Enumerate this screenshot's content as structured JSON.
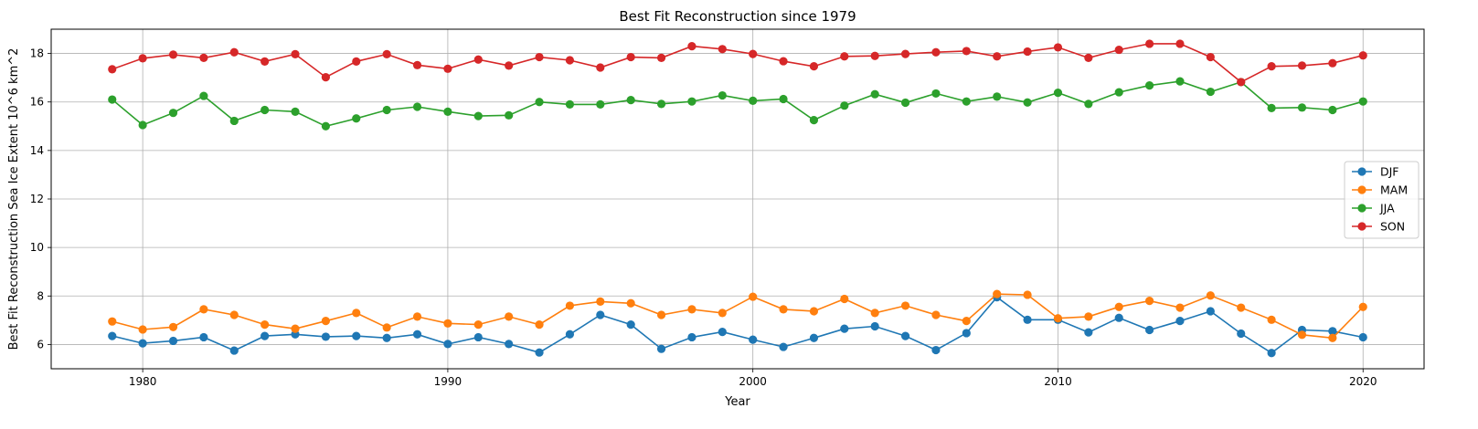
{
  "chart_data": {
    "type": "line",
    "title": "Best Fit Reconstruction since 1979",
    "xlabel": "Year",
    "ylabel": "Best Fit Reconstruction Sea Ice Extent 10^6 km^2",
    "xlim": [
      1977,
      2022
    ],
    "ylim": [
      5,
      19
    ],
    "xticks": [
      1980,
      1990,
      2000,
      2010,
      2020
    ],
    "yticks": [
      6,
      8,
      10,
      12,
      14,
      16,
      18
    ],
    "grid": true,
    "legend_position": "center-right",
    "x": [
      1979,
      1980,
      1981,
      1982,
      1983,
      1984,
      1985,
      1986,
      1987,
      1988,
      1989,
      1990,
      1991,
      1992,
      1993,
      1994,
      1995,
      1996,
      1997,
      1998,
      1999,
      2000,
      2001,
      2002,
      2003,
      2004,
      2005,
      2006,
      2007,
      2008,
      2009,
      2010,
      2011,
      2012,
      2013,
      2014,
      2015,
      2016,
      2017,
      2018,
      2019,
      2020
    ],
    "series": [
      {
        "name": "DJF",
        "color": "#1f77b4",
        "values": [
          6.35,
          6.05,
          6.15,
          6.3,
          5.75,
          6.35,
          6.42,
          6.32,
          6.35,
          6.27,
          6.42,
          6.02,
          6.3,
          6.02,
          5.67,
          6.42,
          7.22,
          6.82,
          5.82,
          6.3,
          6.52,
          6.2,
          5.9,
          6.27,
          6.65,
          6.75,
          6.35,
          5.77,
          6.47,
          7.95,
          7.02,
          7.02,
          6.5,
          7.1,
          6.6,
          6.97,
          7.37,
          6.45,
          5.65,
          6.6,
          6.55,
          6.3
        ]
      },
      {
        "name": "MAM",
        "color": "#ff7f0e",
        "values": [
          6.95,
          6.62,
          6.72,
          7.45,
          7.22,
          6.82,
          6.65,
          6.97,
          7.3,
          6.7,
          7.15,
          6.87,
          6.82,
          7.15,
          6.82,
          7.6,
          7.77,
          7.7,
          7.22,
          7.45,
          7.3,
          7.97,
          7.45,
          7.37,
          7.88,
          7.3,
          7.6,
          7.22,
          6.97,
          8.08,
          8.05,
          7.08,
          7.15,
          7.55,
          7.8,
          7.52,
          8.02,
          7.52,
          7.02,
          6.4,
          6.27,
          7.55
        ]
      },
      {
        "name": "JJA",
        "color": "#2ca02c",
        "values": [
          16.1,
          15.05,
          15.55,
          16.25,
          15.22,
          15.67,
          15.6,
          15.0,
          15.32,
          15.67,
          15.8,
          15.6,
          15.42,
          15.45,
          16.0,
          15.9,
          15.9,
          16.08,
          15.92,
          16.02,
          16.27,
          16.05,
          16.12,
          15.25,
          15.85,
          16.32,
          15.97,
          16.35,
          16.02,
          16.22,
          15.98,
          16.38,
          15.92,
          16.4,
          16.68,
          16.85,
          16.42,
          16.82,
          15.75,
          15.77,
          15.67,
          16.02
        ]
      },
      {
        "name": "SON",
        "color": "#d62728",
        "values": [
          17.35,
          17.8,
          17.95,
          17.82,
          18.05,
          17.67,
          17.97,
          17.02,
          17.67,
          17.97,
          17.52,
          17.37,
          17.75,
          17.5,
          17.85,
          17.72,
          17.42,
          17.85,
          17.82,
          18.3,
          18.18,
          17.98,
          17.68,
          17.47,
          17.88,
          17.9,
          17.98,
          18.05,
          18.1,
          17.88,
          18.08,
          18.25,
          17.82,
          18.15,
          18.4,
          18.4,
          17.85,
          16.82,
          17.47,
          17.5,
          17.6,
          17.92
        ]
      }
    ]
  }
}
